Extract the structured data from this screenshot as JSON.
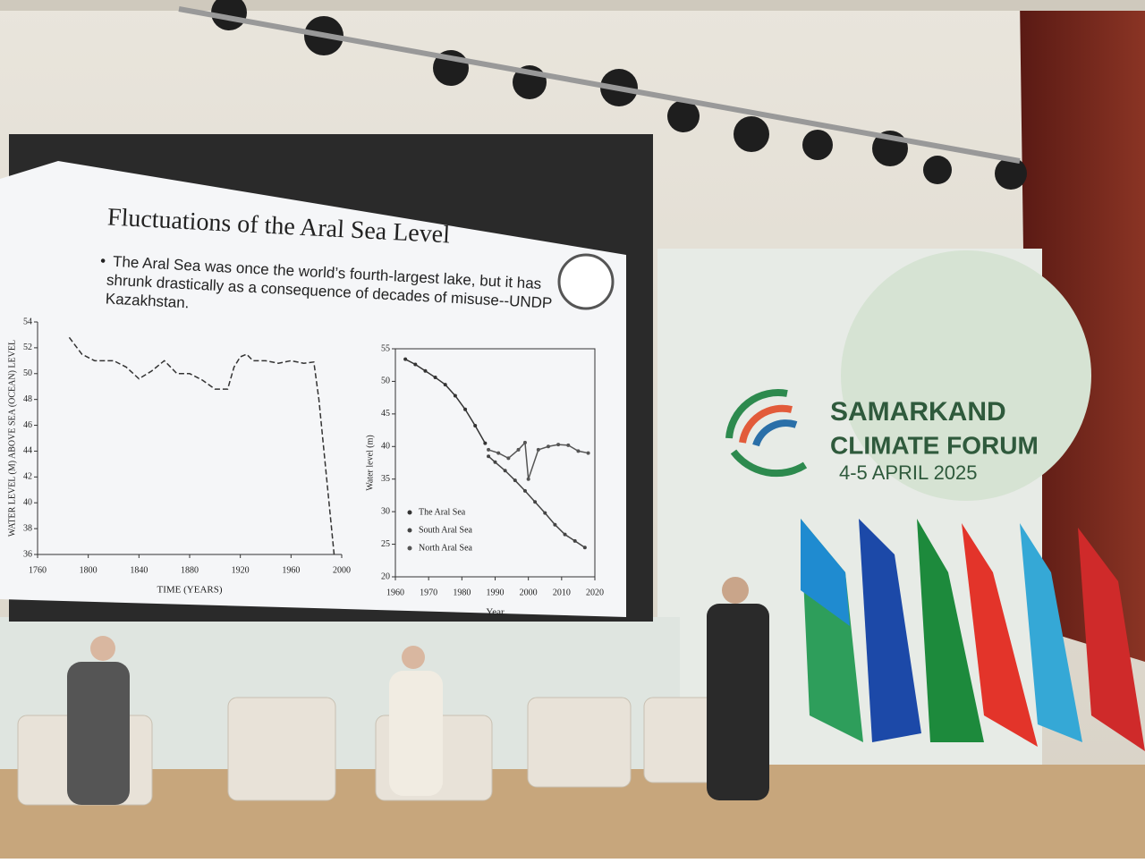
{
  "slide": {
    "title": "Fluctuations of the Aral Sea Level",
    "bullet": [
      "The Aral Sea was once the world’s fourth-largest lake, but it has",
      "shrunk drastically as a consequence of decades of misuse--UNDP",
      "Kazakhstan."
    ]
  },
  "banner": {
    "line1": "SAMARKAND",
    "line2": "CLIMATE FORUM",
    "date": "4-5 APRIL 2025"
  },
  "chart_data": [
    {
      "type": "line",
      "x_label": "TIME (YEARS)",
      "y_label": "WATER LEVEL (M) ABOVE SEA (OCEAN) LEVEL",
      "xlim": [
        1760,
        2000
      ],
      "xticks": [
        1760,
        1800,
        1840,
        1880,
        1920,
        1960,
        2000
      ],
      "ylim": [
        36,
        54
      ],
      "yticks": [
        36,
        38,
        40,
        42,
        44,
        46,
        48,
        50,
        52,
        54
      ],
      "series": [
        {
          "color": "#333333",
          "x": [
            1785,
            1795,
            1805,
            1820,
            1830,
            1840,
            1850,
            1860,
            1870,
            1880,
            1890,
            1900,
            1910,
            1915,
            1920,
            1925,
            1930,
            1940,
            1950,
            1960,
            1970,
            1978,
            1982,
            1986,
            1990,
            1994
          ],
          "values": [
            52.8,
            51.5,
            51,
            51,
            50.5,
            49.6,
            50.2,
            51,
            50,
            50,
            49.5,
            48.8,
            48.8,
            50.5,
            51.3,
            51.5,
            51,
            51,
            50.8,
            51,
            50.8,
            50.9,
            48,
            44,
            40,
            36
          ]
        }
      ]
    },
    {
      "type": "line",
      "x_label": "Year",
      "y_label": "Water level (m)",
      "legend": "lower left",
      "markers": true,
      "xlim": [
        1960,
        2020
      ],
      "xticks": [
        1960,
        1970,
        1980,
        1990,
        2000,
        2010,
        2020
      ],
      "ylim": [
        20,
        55
      ],
      "yticks": [
        20,
        25,
        30,
        35,
        40,
        45,
        50,
        55
      ],
      "series": [
        {
          "name": "The Aral Sea",
          "color": "#333333",
          "x": [
            1963,
            1966,
            1969,
            1972,
            1975,
            1978,
            1981,
            1984,
            1987
          ],
          "values": [
            53.4,
            52.6,
            51.6,
            50.6,
            49.5,
            47.8,
            45.7,
            43.2,
            40.5
          ]
        },
        {
          "name": "South Aral Sea",
          "color": "#444444",
          "x": [
            1988,
            1990,
            1993,
            1996,
            1999,
            2002,
            2005,
            2008,
            2011,
            2014,
            2017
          ],
          "values": [
            38.5,
            37.6,
            36.3,
            34.8,
            33.2,
            31.5,
            29.8,
            28,
            26.5,
            25.5,
            24.5
          ]
        },
        {
          "name": "North Aral Sea",
          "color": "#555555",
          "x": [
            1988,
            1991,
            1994,
            1997,
            1999,
            2000,
            2003,
            2006,
            2009,
            2012,
            2015,
            2018
          ],
          "values": [
            39.5,
            39,
            38.2,
            39.5,
            40.6,
            35,
            39.5,
            40,
            40.3,
            40.2,
            39.3,
            39
          ]
        }
      ]
    }
  ]
}
